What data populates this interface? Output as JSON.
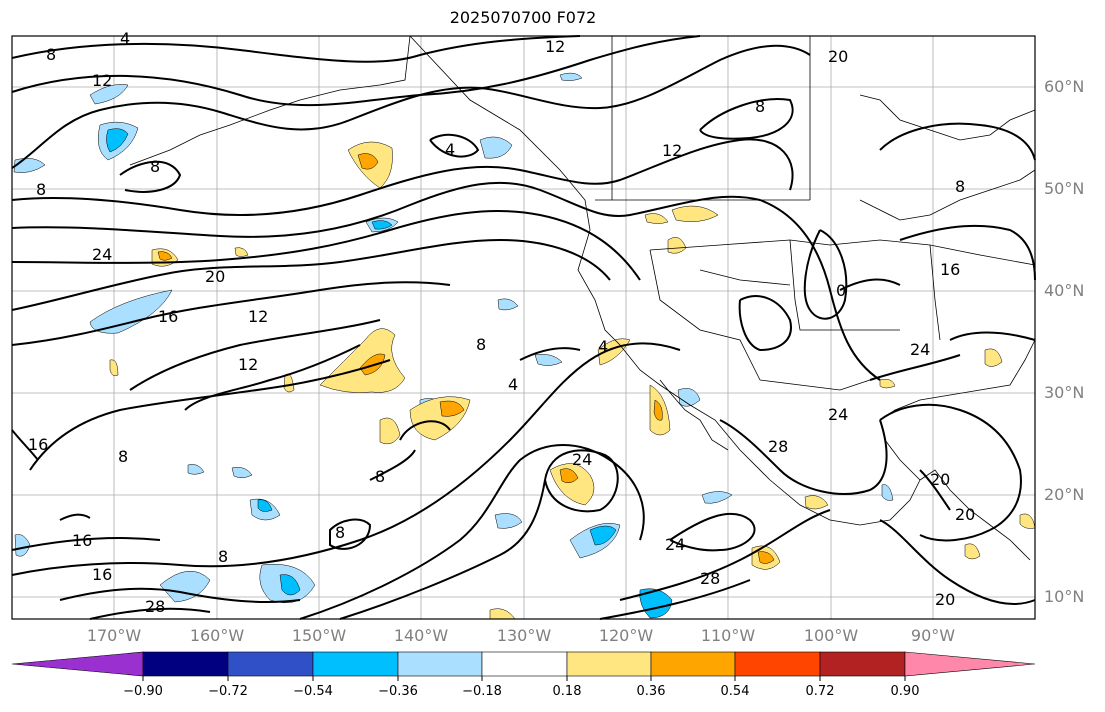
{
  "title": "2025070700 F072",
  "colors": {
    "land_contour": "#000000",
    "grid": "#888888",
    "neg_strong": "#00bfff",
    "neg_light": "#aadfff",
    "pos_light": "#ffe680",
    "pos_mid": "#ffa500"
  },
  "lat_labels": [
    "60°N",
    "50°N",
    "40°N",
    "30°N",
    "20°N",
    "10°N"
  ],
  "lon_labels": [
    "170°W",
    "160°W",
    "150°W",
    "140°W",
    "130°W",
    "120°W",
    "110°W",
    "100°W",
    "90°W"
  ],
  "contour_labels": [
    "8",
    "4",
    "12",
    "12",
    "8",
    "20",
    "8",
    "12",
    "4",
    "8",
    "8",
    "24",
    "20",
    "16",
    "12",
    "12",
    "8",
    "4",
    "4",
    "16",
    "0",
    "16",
    "24",
    "24",
    "28",
    "24",
    "24",
    "28",
    "16",
    "8",
    "8",
    "8",
    "16",
    "16",
    "28",
    "8",
    "20",
    "20",
    "20"
  ],
  "colorbar": {
    "colors": [
      "#9b30d0",
      "#000080",
      "#3050c8",
      "#00bfff",
      "#aadfff",
      "#ffffff",
      "#ffe680",
      "#ffa500",
      "#ff4500",
      "#b22222",
      "#ff88aa"
    ],
    "tick_labels": [
      "−0.90",
      "−0.72",
      "−0.54",
      "−0.36",
      "−0.18",
      "0.18",
      "0.36",
      "0.54",
      "0.72",
      "0.90"
    ]
  }
}
